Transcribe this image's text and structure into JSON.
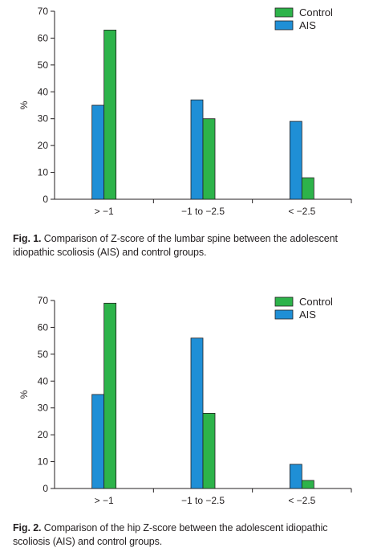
{
  "colors": {
    "Control": "#2db34a",
    "AIS": "#1f8fd6"
  },
  "figures": [
    {
      "caption_label": "Fig. 1.",
      "caption_text": "Comparison of Z-score of the lumbar spine between the adolescent idiopathic scoliosis (AIS) and control groups.",
      "chart_data": {
        "type": "bar",
        "categories": [
          "> −1",
          "−1 to −2.5",
          "< −2.5"
        ],
        "series": [
          {
            "name": "AIS",
            "values": [
              35,
              37,
              29
            ]
          },
          {
            "name": "Control",
            "values": [
              63,
              30,
              8
            ]
          }
        ],
        "ylabel": "%",
        "ylim": [
          0,
          70
        ],
        "yticks": [
          0,
          10,
          20,
          30,
          40,
          50,
          60,
          70
        ],
        "legend": [
          "Control",
          "AIS"
        ],
        "legend_position": "top-right",
        "grid": false
      }
    },
    {
      "caption_label": "Fig. 2.",
      "caption_text": "Comparison of the hip Z-score between the adolescent idiopathic scoliosis (AIS) and control groups.",
      "chart_data": {
        "type": "bar",
        "categories": [
          "> −1",
          "−1 to −2.5",
          "< −2.5"
        ],
        "series": [
          {
            "name": "AIS",
            "values": [
              35,
              56,
              9
            ]
          },
          {
            "name": "Control",
            "values": [
              69,
              28,
              3
            ]
          }
        ],
        "ylabel": "%",
        "ylim": [
          0,
          70
        ],
        "yticks": [
          0,
          10,
          20,
          30,
          40,
          50,
          60,
          70
        ],
        "legend": [
          "Control",
          "AIS"
        ],
        "legend_position": "top-right",
        "grid": false
      }
    }
  ]
}
